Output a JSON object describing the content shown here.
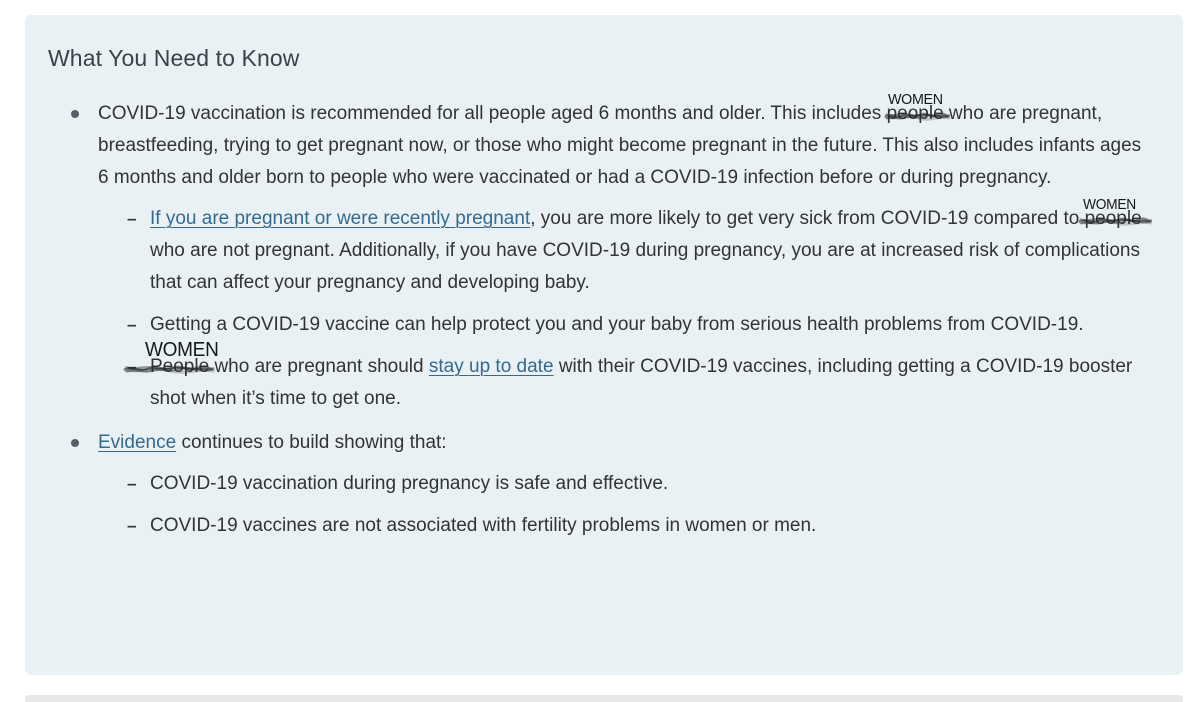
{
  "card": {
    "title": "What You Need to Know",
    "background": "#e9f1f4",
    "bullets": [
      {
        "segments": [
          {
            "t": "text",
            "v": "COVID-19 vaccination is recommended for all people aged 6 months and older. This includes "
          },
          {
            "t": "scribble",
            "v": "people",
            "note": "WOMEN"
          },
          {
            "t": "text",
            "v": " who are pregnant, breastfeeding, trying to get pregnant now, or those who might become pregnant in the future. This also includes infants ages 6 months and older born to people who were vaccinated or had a COVID-19 infection before or during pregnancy."
          }
        ],
        "children": [
          {
            "segments": [
              {
                "t": "link",
                "v": "If you are pregnant or were recently pregnant"
              },
              {
                "t": "text",
                "v": ", you are more likely to get very sick from COVID-19 compared to "
              },
              {
                "t": "scribble",
                "v": "people",
                "note": "WOMEN"
              },
              {
                "t": "text",
                "v": " who are not pregnant. Additionally, if you have COVID-19 during pregnancy, you are at increased risk of complications that can affect your pregnancy and developing baby."
              }
            ]
          },
          {
            "segments": [
              {
                "t": "text",
                "v": "Getting a COVID-19 vaccine can help protect you and your baby from serious health problems from COVID-19."
              }
            ]
          },
          {
            "segments": [
              {
                "t": "scribble",
                "v": "People",
                "note": "WOMEN"
              },
              {
                "t": "text",
                "v": " who are pregnant should "
              },
              {
                "t": "link",
                "v": "stay up to date"
              },
              {
                "t": "text",
                "v": " with their COVID-19 vaccines, including getting a COVID-19 booster shot when it’s time to get one."
              }
            ]
          }
        ]
      },
      {
        "segments": [
          {
            "t": "link",
            "v": "Evidence"
          },
          {
            "t": "text",
            "v": " continues to build showing that:"
          }
        ],
        "children": [
          {
            "segments": [
              {
                "t": "text",
                "v": "COVID-19 vaccination during pregnancy is safe and effective."
              }
            ]
          },
          {
            "segments": [
              {
                "t": "text",
                "v": "COVID-19 vaccines are not associated with fertility problems in women or men."
              }
            ]
          }
        ]
      }
    ]
  },
  "annotations": {
    "note_text": "WOMEN",
    "ink_color": "#222222"
  },
  "colors": {
    "page_background": "#ffffff",
    "card_background": "#e9f1f4",
    "title_text": "#3b4348",
    "body_text": "#333333",
    "link": "#336a90",
    "bullet_dot": "#585f66",
    "next_section_bar": "#e8e8e8"
  }
}
